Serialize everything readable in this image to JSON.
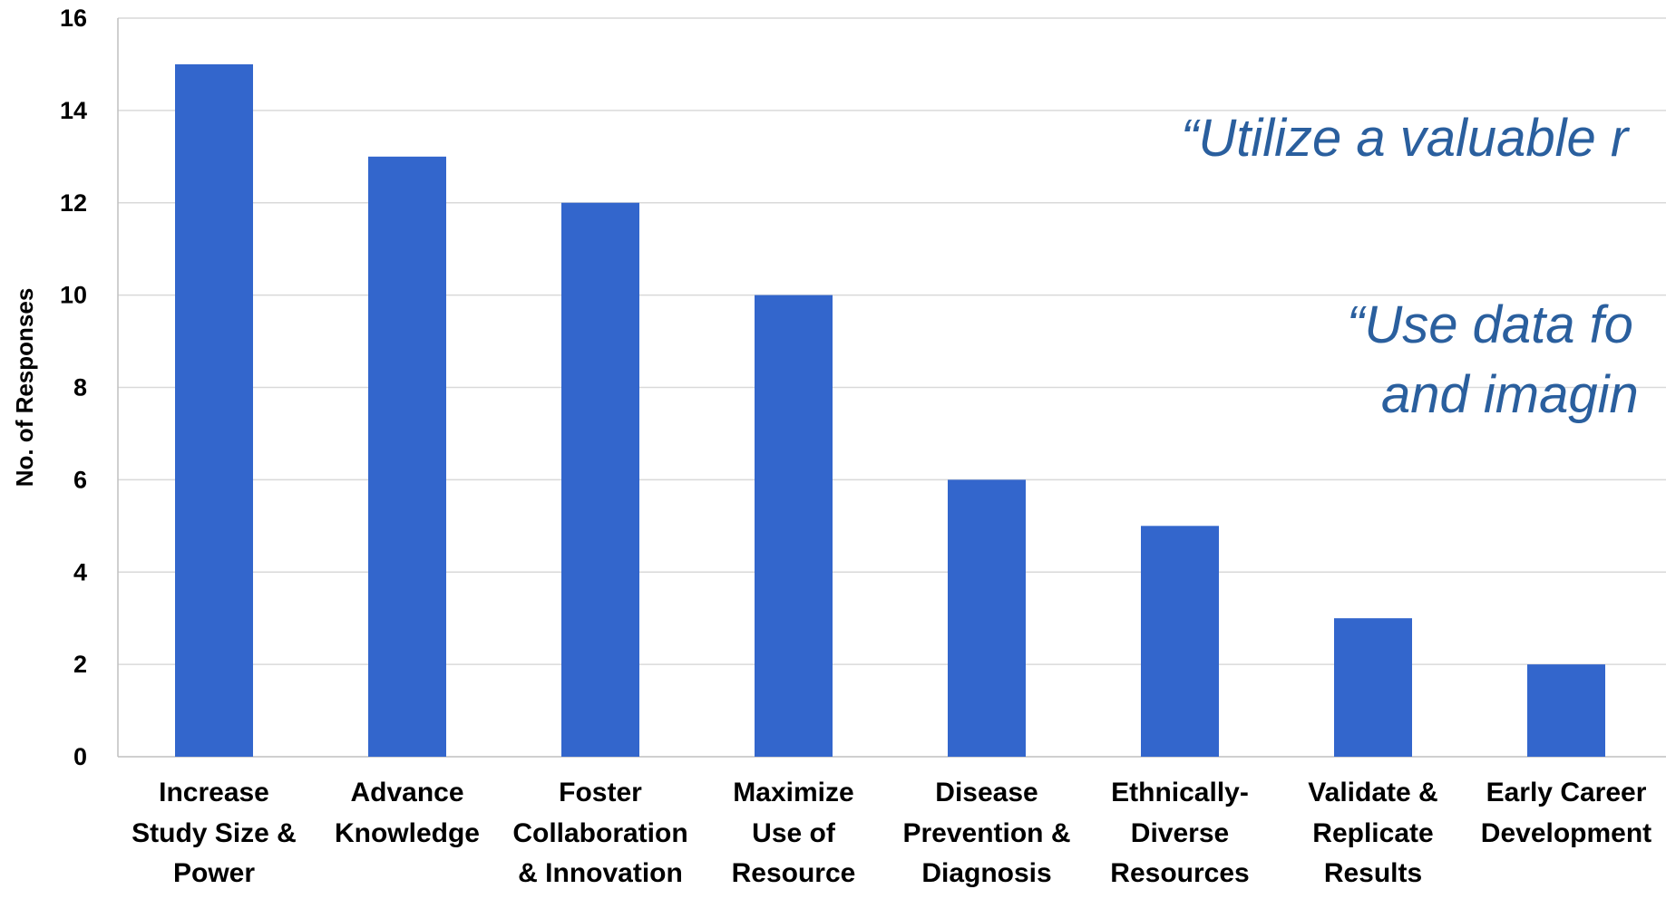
{
  "chart_data": {
    "type": "bar",
    "categories": [
      "Increase Study Size & Power",
      "Advance Knowledge",
      "Foster Collaboration & Innovation",
      "Maximize Use of Resource",
      "Disease Prevention & Diagnosis",
      "Ethnically-Diverse Resources",
      "Validate & Replicate Results",
      "Early Career Development"
    ],
    "category_lines": [
      [
        "Increase",
        "Study Size &",
        "Power"
      ],
      [
        "Advance",
        "Knowledge"
      ],
      [
        "Foster",
        "Collaboration",
        "& Innovation"
      ],
      [
        "Maximize",
        "Use of",
        "Resource"
      ],
      [
        "Disease",
        "Prevention &",
        "Diagnosis"
      ],
      [
        "Ethnically-",
        "Diverse",
        "Resources"
      ],
      [
        "Validate &",
        "Replicate",
        "Results"
      ],
      [
        "Early Career",
        "Development"
      ]
    ],
    "values": [
      15,
      13,
      12,
      10,
      6,
      5,
      3,
      2
    ],
    "ylabel": "No. of Responses",
    "xlabel": "",
    "ylim": [
      0,
      16
    ],
    "yticks": [
      0,
      2,
      4,
      6,
      8,
      10,
      12,
      14,
      16
    ],
    "grid": true,
    "bar_color": "#3366cc",
    "grid_color": "#d9d9d9",
    "axis_color": "#bfbfbf"
  },
  "quotes": [
    {
      "lines": [
        "“Utilize a valuable r"
      ]
    },
    {
      "lines": [
        "“Use data fo",
        "and imagin"
      ]
    }
  ],
  "quote_color": "#2a5f9e"
}
